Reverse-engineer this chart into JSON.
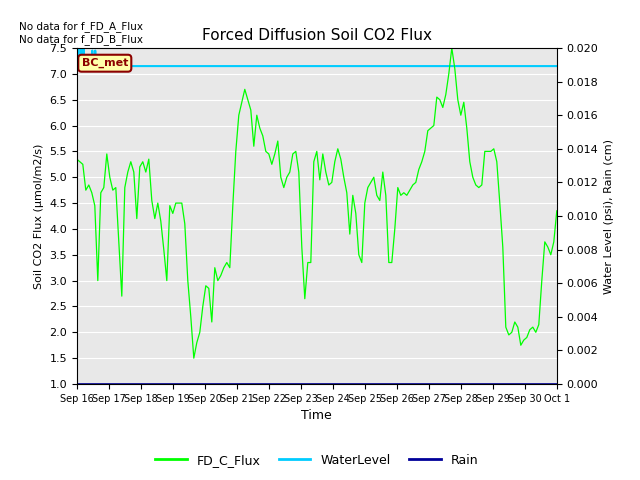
{
  "title": "Forced Diffusion Soil CO2 Flux",
  "xlabel": "Time",
  "ylabel_left": "Soil CO2 Flux (μmol/m2/s)",
  "ylabel_right": "Water Level (psi), Rain (cm)",
  "no_data_text": [
    "No data for f_FD_A_Flux",
    "No data for f_FD_B_Flux"
  ],
  "legend_label_text": "BC_met",
  "legend_entries": [
    "FD_C_Flux",
    "WaterLevel",
    "Rain"
  ],
  "legend_colors": [
    "#00ff00",
    "#00ccff",
    "#0000cc"
  ],
  "ylim_left": [
    1.0,
    7.5
  ],
  "ylim_right": [
    0.0,
    0.02
  ],
  "yticks_left": [
    1.0,
    1.5,
    2.0,
    2.5,
    3.0,
    3.5,
    4.0,
    4.5,
    5.0,
    5.5,
    6.0,
    6.5,
    7.0,
    7.5
  ],
  "yticks_right": [
    0.0,
    0.002,
    0.004,
    0.006,
    0.008,
    0.01,
    0.012,
    0.014,
    0.016,
    0.018,
    0.02
  ],
  "xtick_labels": [
    "Sep 16",
    "Sep 17",
    "Sep 18",
    "Sep 19",
    "Sep 20",
    "Sep 21",
    "Sep 22",
    "Sep 23",
    "Sep 24",
    "Sep 25",
    "Sep 26",
    "Sep 27",
    "Sep 28",
    "Sep 29",
    "Sep 30",
    "Oct 1"
  ],
  "background_color": "#e8e8e8",
  "grid_color": "#ffffff",
  "fd_c_flux": [
    5.35,
    5.3,
    5.25,
    4.75,
    4.85,
    4.7,
    4.45,
    3.0,
    4.7,
    4.8,
    5.45,
    5.0,
    4.75,
    4.8,
    3.75,
    2.7,
    4.8,
    5.1,
    5.3,
    5.1,
    4.2,
    5.2,
    5.3,
    5.1,
    5.35,
    4.55,
    4.2,
    4.5,
    4.15,
    3.6,
    3.0,
    4.45,
    4.3,
    4.5,
    4.5,
    4.5,
    4.1,
    3.0,
    2.3,
    1.5,
    1.8,
    2.0,
    2.5,
    2.9,
    2.85,
    2.2,
    3.25,
    3.0,
    3.1,
    3.25,
    3.35,
    3.25,
    4.45,
    5.5,
    6.2,
    6.45,
    6.7,
    6.5,
    6.3,
    5.6,
    6.2,
    5.95,
    5.8,
    5.5,
    5.45,
    5.25,
    5.45,
    5.7,
    5.0,
    4.8,
    5.0,
    5.1,
    5.45,
    5.5,
    5.1,
    3.65,
    2.65,
    3.35,
    3.35,
    5.3,
    5.5,
    4.95,
    5.45,
    5.1,
    4.85,
    4.9,
    5.3,
    5.55,
    5.35,
    5.0,
    4.7,
    3.9,
    4.65,
    4.3,
    3.5,
    3.35,
    4.5,
    4.8,
    4.9,
    5.0,
    4.65,
    4.55,
    5.1,
    4.65,
    3.35,
    3.35,
    4.0,
    4.8,
    4.65,
    4.7,
    4.65,
    4.75,
    4.85,
    4.9,
    5.15,
    5.3,
    5.5,
    5.9,
    5.95,
    6.0,
    6.55,
    6.5,
    6.35,
    6.6,
    7.0,
    7.5,
    7.1,
    6.5,
    6.2,
    6.45,
    5.95,
    5.3,
    5.0,
    4.85,
    4.8,
    4.85,
    5.5,
    5.5,
    5.5,
    5.55,
    5.3,
    4.5,
    3.65,
    2.1,
    1.95,
    2.0,
    2.2,
    2.1,
    1.75,
    1.85,
    1.9,
    2.05,
    2.1,
    2.0,
    2.15,
    3.0,
    3.75,
    3.65,
    3.5,
    3.75,
    4.35
  ],
  "water_level_x": [
    0,
    0.3,
    0.6,
    1.0,
    1.3,
    1.6,
    2.0,
    2.3,
    2.6,
    3.0,
    5.0,
    5.3,
    5.6,
    6.0,
    6.3,
    6.6,
    7.5,
    164
  ],
  "water_level_y": [
    7.15,
    7.5,
    7.15,
    7.15,
    7.5,
    7.15,
    7.15,
    7.5,
    7.15,
    7.15,
    7.15,
    7.45,
    7.2,
    7.15,
    7.45,
    7.2,
    7.15,
    7.15
  ],
  "n_points": 165
}
